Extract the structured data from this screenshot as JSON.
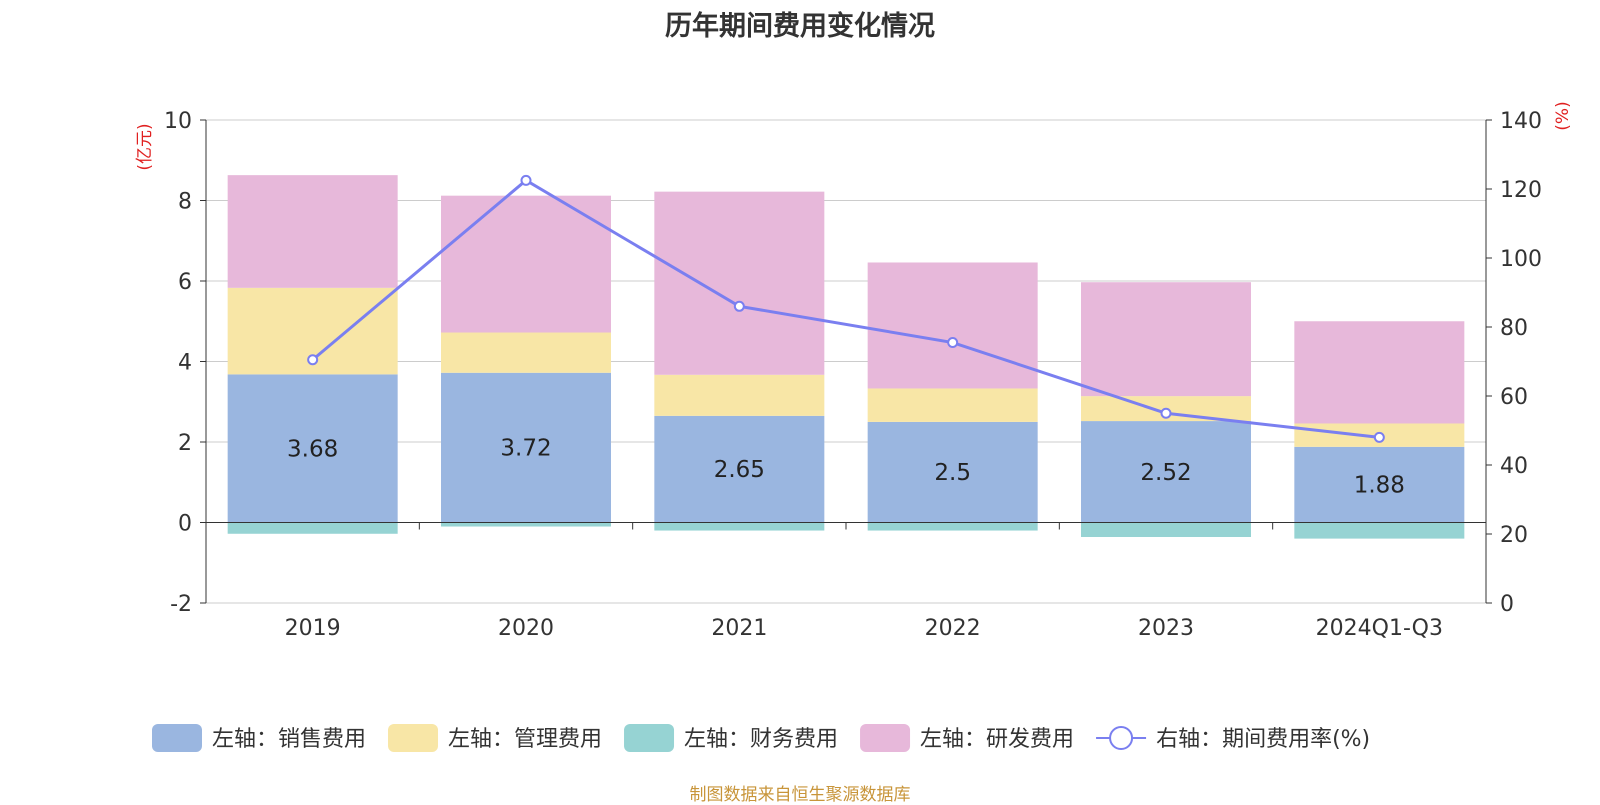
{
  "chart_data": {
    "type": "bar",
    "stacked": true,
    "title": "历年期间费用变化情况",
    "categories": [
      "2019",
      "2020",
      "2021",
      "2022",
      "2023",
      "2024Q1-Q3"
    ],
    "left_axis": {
      "unit": "(亿元)",
      "ticks": [
        "10",
        "8",
        "6",
        "4",
        "2",
        "0",
        "-2"
      ],
      "range": [
        -2,
        10
      ]
    },
    "right_axis": {
      "unit": "(%)",
      "ticks": [
        "140",
        "120",
        "100",
        "80",
        "60",
        "40",
        "20",
        "0"
      ],
      "range": [
        0,
        140
      ]
    },
    "series": [
      {
        "name": "左轴：销售费用",
        "axis": "left",
        "kind": "bar",
        "color": "#9ab6e0",
        "values": [
          3.68,
          3.72,
          2.65,
          2.5,
          2.52,
          1.88
        ],
        "labels": [
          "3.68",
          "3.72",
          "2.65",
          "2.5",
          "2.52",
          "1.88"
        ]
      },
      {
        "name": "左轴：管理费用",
        "axis": "left",
        "kind": "bar",
        "color": "#f8e6a6",
        "values": [
          2.15,
          1.0,
          1.02,
          0.83,
          0.62,
          0.58
        ]
      },
      {
        "name": "左轴：财务费用",
        "axis": "left",
        "kind": "bar",
        "color": "#96d3d3",
        "values": [
          -0.28,
          -0.1,
          -0.2,
          -0.2,
          -0.36,
          -0.4
        ]
      },
      {
        "name": "左轴：研发费用",
        "axis": "left",
        "kind": "bar",
        "color": "#e7b8da",
        "values": [
          2.8,
          3.4,
          4.55,
          3.13,
          2.83,
          2.54
        ]
      },
      {
        "name": "右轴：期间费用率(%)",
        "axis": "right",
        "kind": "line",
        "color": "#7a7ff0",
        "values": [
          70.5,
          122.5,
          86,
          75.5,
          55,
          48
        ]
      }
    ],
    "grid": true,
    "legend_position": "bottom"
  },
  "source_note": "制图数据来自恒生聚源数据库"
}
